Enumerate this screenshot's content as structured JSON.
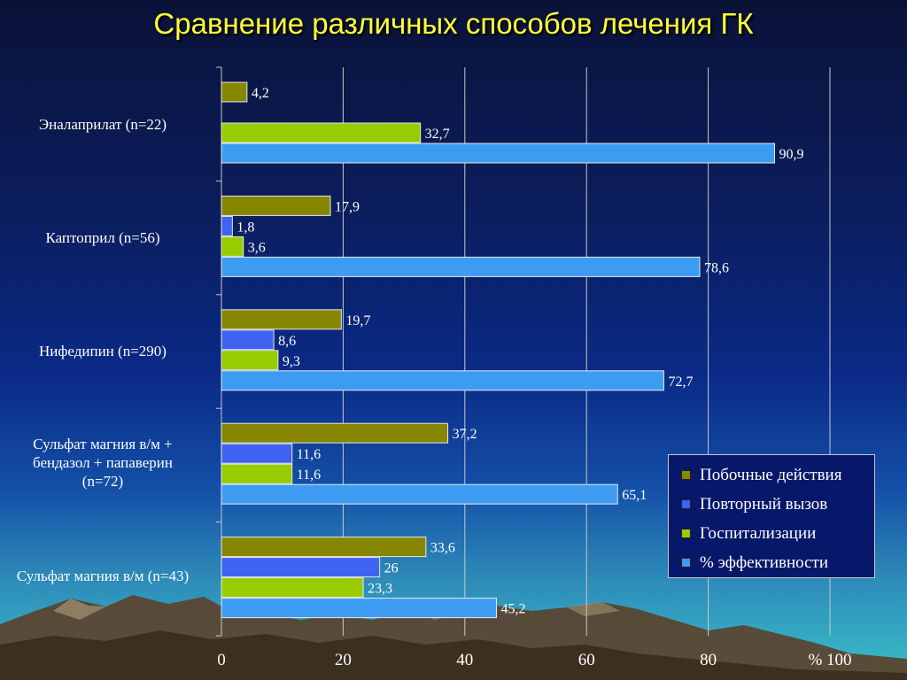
{
  "title": "Сравнение различных способов лечения ГК",
  "colors": {
    "side_effects": "#868600",
    "repeat_call": "#3f63f0",
    "hospitalization": "#98cc00",
    "efficiency": "#3d9cf2",
    "gridline": "#c8c8c8",
    "mountains": "#5a4632"
  },
  "chart_data": {
    "type": "bar",
    "orientation": "horizontal",
    "categories": [
      "Эналаприлат (n=22)",
      "Каптоприл (n=56)",
      "Нифедипин (n=290)",
      "Сульфат магния в/м + бендазол + папаверин (n=72)",
      "Сульфат магния в/м (n=43)"
    ],
    "series": [
      {
        "name": "Побочные действия",
        "color_key": "side_effects",
        "values": [
          4.2,
          17.9,
          19.7,
          37.2,
          33.6
        ],
        "labels": [
          "4,2",
          "17,9",
          "19,7",
          "37,2",
          "33,6"
        ]
      },
      {
        "name": "Повторный вызов",
        "color_key": "repeat_call",
        "values": [
          null,
          1.8,
          8.6,
          11.6,
          26
        ],
        "labels": [
          "",
          "1,8",
          "8,6",
          "11,6",
          "26"
        ]
      },
      {
        "name": "Госпитализации",
        "color_key": "hospitalization",
        "values": [
          32.7,
          3.6,
          9.3,
          11.6,
          23.3
        ],
        "labels": [
          "32,7",
          "3,6",
          "9,3",
          "11,6",
          "23,3"
        ]
      },
      {
        "name": "% эффективности",
        "color_key": "efficiency",
        "values": [
          90.9,
          78.6,
          72.7,
          65.1,
          45.2
        ],
        "labels": [
          "90,9",
          "78,6",
          "72,7",
          "65,1",
          "45,2"
        ]
      }
    ],
    "x_ticks": [
      "0",
      "20",
      "40",
      "60",
      "80",
      "% 100"
    ],
    "xlim": [
      0,
      100
    ],
    "grid": true,
    "legend_position": "right"
  },
  "category_lines": [
    [
      "Эналаприлат (n=22)"
    ],
    [
      "Каптоприл (n=56)"
    ],
    [
      "Нифедипин (n=290)"
    ],
    [
      "Сульфат магния в/м +",
      "бендазол + папаверин",
      "(n=72)"
    ],
    [
      "Сульфат магния в/м (n=43)"
    ]
  ]
}
